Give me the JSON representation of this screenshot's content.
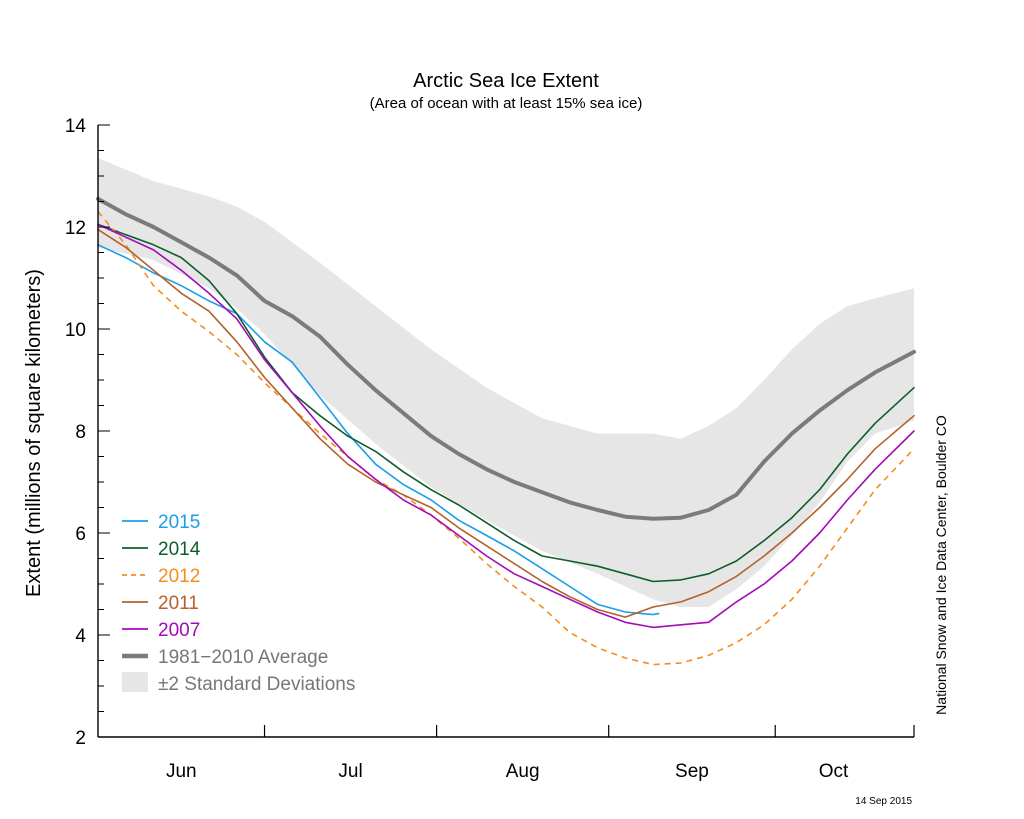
{
  "chart_data": {
    "type": "line",
    "title": "Arctic Sea Ice Extent",
    "subtitle": "(Area of ocean with at least 15% sea ice)",
    "ylabel": "Extent (millions of square kilometers)",
    "xlabel": "",
    "ylim": [
      2,
      14
    ],
    "yticks": [
      2,
      4,
      6,
      8,
      10,
      12,
      14
    ],
    "xlim": [
      0,
      147
    ],
    "month_boundaries": [
      0,
      30,
      61,
      92,
      122,
      147
    ],
    "months": [
      {
        "label": "Jun",
        "pos": 15
      },
      {
        "label": "Jul",
        "pos": 45.5
      },
      {
        "label": "Aug",
        "pos": 76.5
      },
      {
        "label": "Sep",
        "pos": 107
      },
      {
        "label": "Oct",
        "pos": 132.5
      }
    ],
    "x_axis_note": "day offset from 1 June",
    "grid": false,
    "legend_position": "lower-left",
    "credit": "National Snow and Ice Data Center, Boulder CO",
    "date_stamp": "14 Sep 2015",
    "std_band": {
      "name": "±2 Standard Deviations",
      "color": "#e6e6e6",
      "x": [
        0,
        10,
        20,
        25,
        30,
        40,
        50,
        60,
        70,
        80,
        90,
        95,
        100,
        105,
        110,
        115,
        120,
        125,
        130,
        135,
        140,
        147
      ],
      "upper": [
        13.35,
        12.9,
        12.6,
        12.4,
        12.1,
        11.3,
        10.45,
        9.6,
        8.85,
        8.25,
        7.95,
        7.95,
        7.95,
        7.85,
        8.1,
        8.45,
        9.0,
        9.6,
        10.1,
        10.45,
        10.6,
        10.8
      ],
      "lower": [
        11.6,
        11.35,
        10.8,
        10.4,
        9.9,
        8.7,
        7.75,
        6.9,
        6.25,
        5.65,
        5.2,
        4.95,
        4.7,
        4.55,
        4.55,
        4.9,
        5.35,
        5.95,
        6.6,
        7.4,
        7.95,
        8.2
      ]
    },
    "series": [
      {
        "name": "1981–2010 Average",
        "color": "#7b7b7b",
        "width": 4,
        "dash": "",
        "x": [
          0,
          5,
          10,
          15,
          20,
          25,
          30,
          35,
          40,
          45,
          50,
          55,
          60,
          65,
          70,
          75,
          80,
          85,
          90,
          95,
          100,
          105,
          110,
          115,
          120,
          125,
          130,
          135,
          140,
          147
        ],
        "y": [
          12.55,
          12.25,
          12.0,
          11.7,
          11.4,
          11.05,
          10.55,
          10.25,
          9.85,
          9.3,
          8.8,
          8.35,
          7.9,
          7.55,
          7.25,
          7.0,
          6.8,
          6.6,
          6.45,
          6.32,
          6.28,
          6.3,
          6.45,
          6.75,
          7.4,
          7.95,
          8.4,
          8.8,
          9.15,
          9.55
        ]
      },
      {
        "name": "2015",
        "color": "#1a9eea",
        "width": 1.6,
        "dash": "",
        "x": [
          0,
          5,
          10,
          15,
          20,
          25,
          30,
          35,
          40,
          45,
          50,
          55,
          60,
          65,
          70,
          75,
          80,
          85,
          90,
          95,
          100,
          101
        ],
        "y": [
          11.65,
          11.4,
          11.1,
          10.85,
          10.55,
          10.3,
          9.75,
          9.35,
          8.65,
          7.95,
          7.35,
          6.95,
          6.65,
          6.25,
          5.95,
          5.65,
          5.3,
          4.95,
          4.6,
          4.45,
          4.4,
          4.42
        ]
      },
      {
        "name": "2014",
        "color": "#0d5e2a",
        "width": 1.6,
        "dash": "",
        "x": [
          0,
          5,
          10,
          15,
          20,
          25,
          30,
          35,
          40,
          45,
          50,
          55,
          60,
          65,
          70,
          75,
          80,
          85,
          90,
          95,
          100,
          105,
          110,
          115,
          120,
          125,
          130,
          135,
          140,
          147
        ],
        "y": [
          12.05,
          11.85,
          11.65,
          11.4,
          10.95,
          10.3,
          9.45,
          8.75,
          8.3,
          7.9,
          7.6,
          7.2,
          6.85,
          6.55,
          6.2,
          5.85,
          5.55,
          5.45,
          5.35,
          5.2,
          5.05,
          5.08,
          5.2,
          5.45,
          5.85,
          6.3,
          6.85,
          7.55,
          8.15,
          8.85
        ]
      },
      {
        "name": "2012",
        "color": "#f68b1f",
        "width": 1.6,
        "dash": "6,5",
        "x": [
          0,
          5,
          10,
          15,
          20,
          25,
          30,
          35,
          40,
          45,
          50,
          55,
          60,
          65,
          70,
          75,
          80,
          85,
          90,
          95,
          100,
          105,
          110,
          115,
          120,
          125,
          130,
          135,
          140,
          147
        ],
        "y": [
          12.3,
          11.65,
          10.85,
          10.35,
          9.95,
          9.5,
          8.95,
          8.45,
          7.95,
          7.5,
          7.05,
          6.75,
          6.35,
          5.9,
          5.4,
          4.95,
          4.55,
          4.05,
          3.75,
          3.55,
          3.42,
          3.45,
          3.6,
          3.85,
          4.2,
          4.7,
          5.35,
          6.1,
          6.85,
          7.65
        ]
      },
      {
        "name": "2011",
        "color": "#b2622a",
        "width": 1.6,
        "dash": "",
        "x": [
          0,
          5,
          10,
          15,
          20,
          25,
          30,
          35,
          40,
          45,
          50,
          55,
          60,
          65,
          70,
          75,
          80,
          85,
          90,
          95,
          100,
          105,
          110,
          115,
          120,
          125,
          130,
          135,
          140,
          147
        ],
        "y": [
          11.95,
          11.6,
          11.15,
          10.7,
          10.35,
          9.75,
          9.05,
          8.45,
          7.85,
          7.35,
          7.0,
          6.75,
          6.5,
          6.1,
          5.75,
          5.4,
          5.05,
          4.75,
          4.5,
          4.35,
          4.55,
          4.65,
          4.85,
          5.15,
          5.55,
          6.0,
          6.5,
          7.05,
          7.65,
          8.3
        ]
      },
      {
        "name": "2007",
        "color": "#a30ab8",
        "width": 1.6,
        "dash": "",
        "x": [
          0,
          5,
          10,
          15,
          20,
          25,
          30,
          35,
          40,
          45,
          50,
          55,
          60,
          65,
          70,
          75,
          80,
          85,
          90,
          95,
          100,
          105,
          110,
          115,
          120,
          125,
          130,
          135,
          140,
          147
        ],
        "y": [
          12.05,
          11.8,
          11.55,
          11.15,
          10.7,
          10.2,
          9.4,
          8.75,
          8.1,
          7.5,
          7.05,
          6.65,
          6.35,
          5.95,
          5.55,
          5.2,
          4.95,
          4.7,
          4.45,
          4.25,
          4.15,
          4.2,
          4.25,
          4.65,
          5.0,
          5.45,
          6.0,
          6.65,
          7.25,
          8.0
        ]
      }
    ],
    "legend": [
      {
        "label": "2015",
        "color": "#1a9eea",
        "kind": "line",
        "dash": ""
      },
      {
        "label": "2014",
        "color": "#0d5e2a",
        "kind": "line",
        "dash": ""
      },
      {
        "label": "2012",
        "color": "#f68b1f",
        "kind": "line",
        "dash": "6,5"
      },
      {
        "label": "2011",
        "color": "#b2622a",
        "kind": "line",
        "dash": ""
      },
      {
        "label": "2007",
        "color": "#a30ab8",
        "kind": "line",
        "dash": ""
      },
      {
        "label": "1981−2010 Average",
        "color": "#7b7b7b",
        "kind": "thick",
        "dash": ""
      },
      {
        "label": "±2 Standard Deviations",
        "color": "#e6e6e6",
        "kind": "box",
        "dash": ""
      }
    ]
  }
}
